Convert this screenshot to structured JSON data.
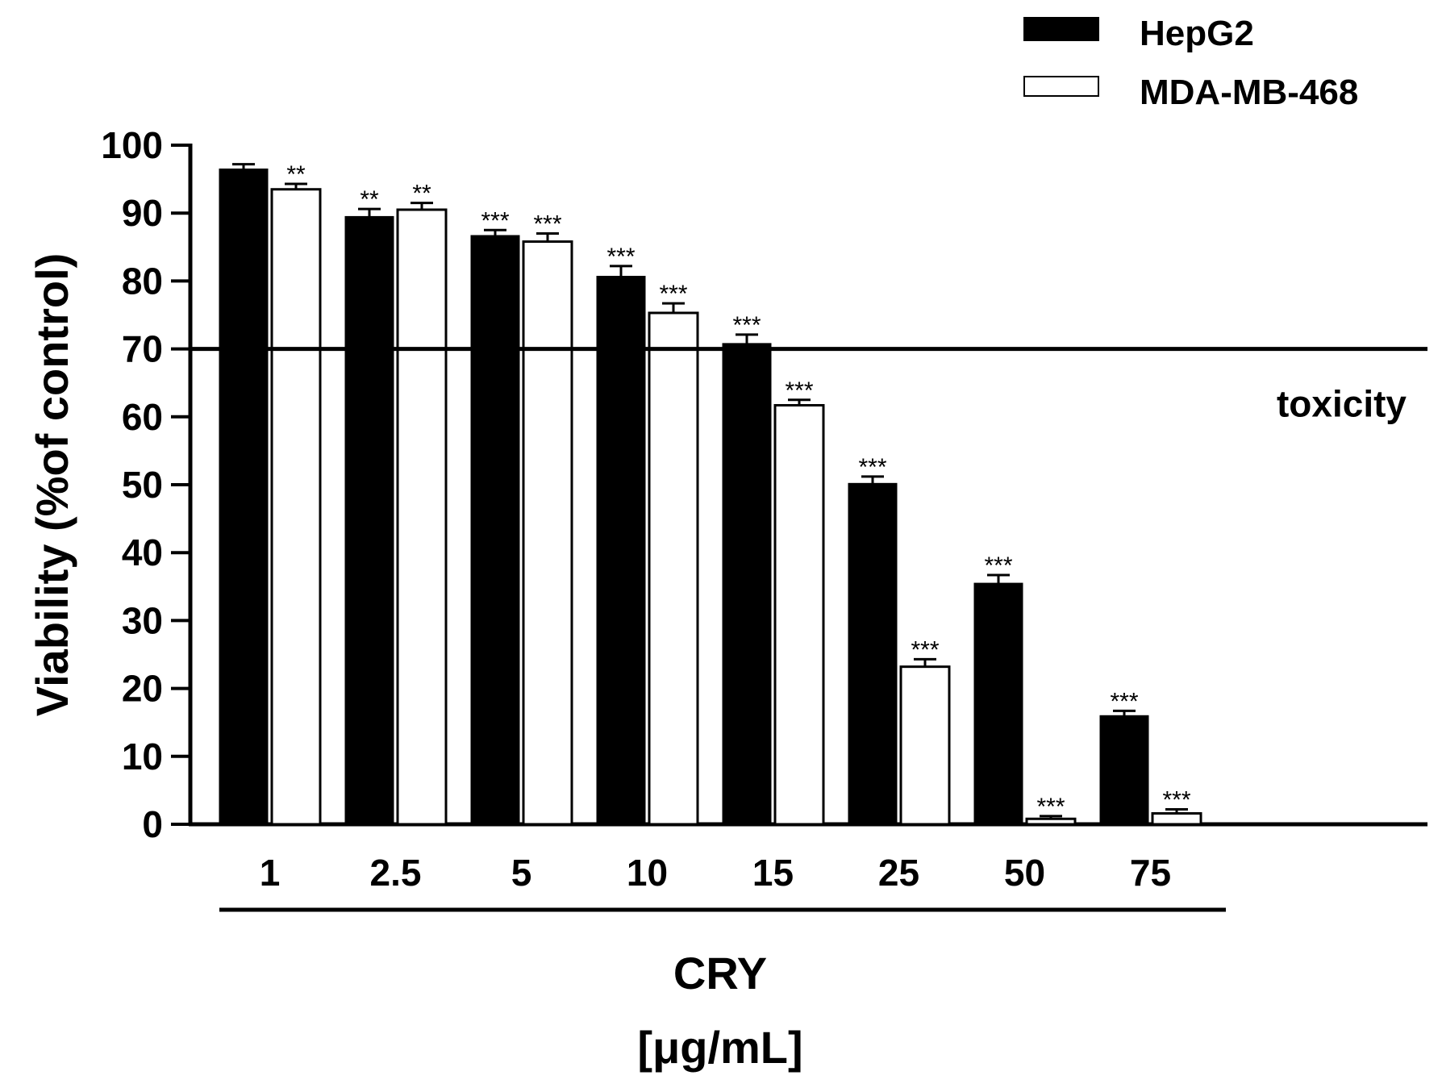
{
  "chart_data": {
    "type": "bar",
    "title": "",
    "xlabel_line1": "CRY",
    "xlabel_line2": "[μg/mL]",
    "ylabel": "Viability (%of control)",
    "ylim": [
      0,
      100
    ],
    "yticks": [
      "0",
      "10",
      "20",
      "30",
      "40",
      "50",
      "60",
      "70",
      "80",
      "90",
      "100"
    ],
    "categories": [
      "1",
      "2.5",
      "5",
      "10",
      "15",
      "25",
      "50",
      "75"
    ],
    "series": [
      {
        "name": "HepG2",
        "color": "#000000",
        "fill": "#000000",
        "values": [
          96.5,
          89.5,
          86.7,
          80.7,
          70.8,
          50.2,
          35.5,
          16.0
        ],
        "errors": [
          0.7,
          1.1,
          0.8,
          1.5,
          1.3,
          1.0,
          1.2,
          0.7
        ],
        "significance": [
          "",
          "**",
          "***",
          "***",
          "***",
          "***",
          "***",
          "***"
        ]
      },
      {
        "name": "MDA-MB-468",
        "color": "#000000",
        "fill": "#ffffff",
        "values": [
          93.5,
          90.5,
          85.8,
          75.3,
          61.7,
          23.2,
          0.8,
          1.6
        ],
        "errors": [
          0.8,
          1.0,
          1.2,
          1.4,
          0.8,
          1.1,
          0.4,
          0.6
        ],
        "significance": [
          "**",
          "**",
          "***",
          "***",
          "***",
          "***",
          "***",
          "***"
        ]
      }
    ],
    "threshold": {
      "value": 70,
      "label": "toxicity"
    },
    "legend_position": "top-right",
    "grid": false
  }
}
